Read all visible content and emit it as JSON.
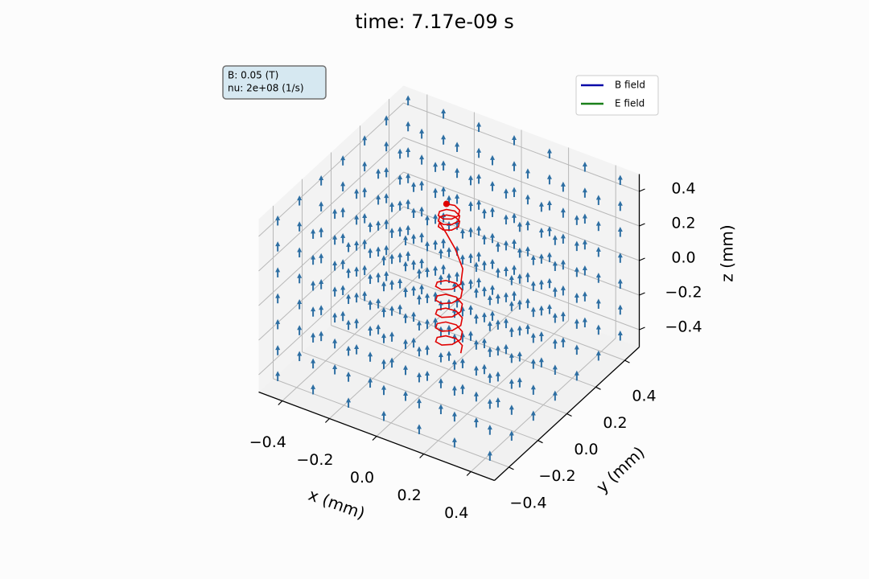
{
  "chart_data": {
    "type": "line3d",
    "title": "time: 7.17e-09 s",
    "xlabel": "x (mm)",
    "ylabel": "y (mm)",
    "zlabel": "z (mm)",
    "xlim": [
      -0.5,
      0.5
    ],
    "ylim": [
      -0.5,
      0.5
    ],
    "zlim": [
      -0.5,
      0.5
    ],
    "xticks": [
      {
        "value": -0.4,
        "label": "−0.4"
      },
      {
        "value": -0.2,
        "label": "−0.2"
      },
      {
        "value": 0,
        "label": "0.0"
      },
      0.2,
      0.4
    ],
    "yticks": [
      {
        "value": -0.4,
        "label": "−0.4"
      },
      {
        "value": -0.2,
        "label": "−0.2"
      },
      {
        "value": 0,
        "label": "0.0"
      },
      0.2,
      0.4
    ],
    "zticks": [
      {
        "value": -0.4,
        "label": "−0.4"
      },
      {
        "value": -0.2,
        "label": "−0.2"
      },
      {
        "value": 0,
        "label": "0.0"
      },
      0.2,
      0.4
    ],
    "grid": true,
    "annotation": [
      "B: 0.05 (T)",
      "nu: 2e+08 (1/s)"
    ],
    "legend_loc": "upper right",
    "legend": [
      {
        "name": "B field",
        "color": "#0a0aa8"
      },
      {
        "name": "E field",
        "color": "#1a801a"
      }
    ],
    "field": {
      "color": "#2e6fa3",
      "grid": [
        -0.45,
        -0.3,
        -0.15,
        0,
        0.15,
        0.3,
        0.45
      ],
      "length": 0.04
    },
    "trajectory": {
      "color": "#e00000",
      "x": [
        0.05,
        0.035,
        0,
        -0.035,
        -0.05,
        -0.035,
        0,
        0.035,
        0.05,
        0.035,
        0,
        -0.035,
        -0.05,
        -0.035,
        0,
        0.035,
        0.05,
        0.035,
        0,
        -0.035,
        -0.05,
        -0.035,
        0,
        0.035,
        0.05,
        0.035,
        0,
        -0.035,
        -0.05,
        -0.035,
        0,
        0.035,
        0.05,
        0.035,
        0,
        -0.035,
        -0.05,
        -0.035,
        0,
        0.035,
        0.05,
        0.04,
        0,
        -0.03,
        -0.04,
        -0.028,
        0,
        0.028,
        0.04,
        0.028,
        0,
        -0.028,
        -0.04,
        -0.028,
        0,
        0.028,
        0.04,
        0.028,
        0,
        -0.028,
        -0.04,
        -0.028,
        0,
        0.028,
        0.04,
        0.028,
        0,
        -0.028
      ],
      "y": [
        0,
        0.035,
        0.05,
        0.035,
        0,
        -0.035,
        -0.05,
        -0.035,
        0,
        0.035,
        0.05,
        0.035,
        0,
        -0.035,
        -0.05,
        -0.035,
        0,
        0.035,
        0.05,
        0.035,
        0,
        -0.035,
        -0.05,
        -0.035,
        0,
        0.035,
        0.05,
        0.035,
        0,
        -0.035,
        -0.05,
        -0.035,
        0,
        0.035,
        0.05,
        0.035,
        0,
        -0.035,
        -0.05,
        -0.035,
        0,
        0.03,
        0.045,
        0.03,
        0,
        -0.028,
        -0.04,
        -0.028,
        0,
        0.028,
        0.04,
        0.028,
        0,
        -0.028,
        -0.04,
        -0.028,
        0,
        0.028,
        0.04,
        0.028,
        0,
        -0.028,
        -0.04,
        -0.028,
        0,
        0.028,
        0.04,
        0.028
      ],
      "z": [
        -0.38,
        -0.37,
        -0.36,
        -0.35,
        -0.34,
        -0.33,
        -0.32,
        -0.31,
        -0.3,
        -0.29,
        -0.28,
        -0.27,
        -0.26,
        -0.25,
        -0.24,
        -0.23,
        -0.22,
        -0.21,
        -0.2,
        -0.19,
        -0.18,
        -0.17,
        -0.16,
        -0.15,
        -0.14,
        -0.13,
        -0.12,
        -0.11,
        -0.1,
        -0.09,
        -0.08,
        -0.07,
        -0.06,
        -0.05,
        -0.04,
        -0.03,
        -0.02,
        -0.01,
        0,
        0.01,
        0.02,
        0.08,
        0.16,
        0.25,
        0.33,
        0.334,
        0.338,
        0.342,
        0.346,
        0.35,
        0.354,
        0.358,
        0.362,
        0.366,
        0.37,
        0.374,
        0.378,
        0.382,
        0.386,
        0.39,
        0.394,
        0.398,
        0.402,
        0.406,
        0.41,
        0.414,
        0.418,
        0.422
      ]
    }
  }
}
